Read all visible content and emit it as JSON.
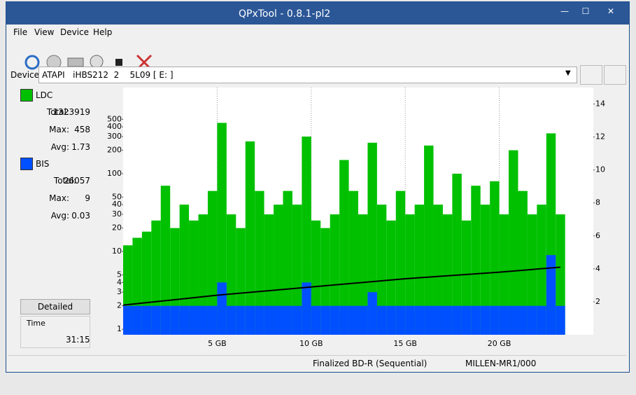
{
  "window": {
    "title": "QPxTool - 0.8.1-pl2"
  },
  "menu": [
    "File",
    "View",
    "Device",
    "Help"
  ],
  "device": {
    "label": "Device:",
    "value": "ATAPI   iHBS212  2    5L09 [ E: ]"
  },
  "panel": {
    "ldc_stats": [
      {
        "label": "Total:",
        "value": "1323919"
      },
      {
        "label": "Max:",
        "value": "458"
      },
      {
        "label": "Avg:",
        "value": "1.73"
      }
    ],
    "bis_stats": [
      {
        "label": "Total:",
        "value": "26057"
      },
      {
        "label": "Max:",
        "value": "9"
      },
      {
        "label": "Avg:",
        "value": "0.03"
      }
    ],
    "button": "Detailed",
    "time_label": "Time",
    "time": "31:15"
  },
  "status": [
    "Finalized BD-R (Sequential)",
    "MILLEN-MR1/000"
  ],
  "chart_data": {
    "type": "bar",
    "ylog": true,
    "grid": "x",
    "x": [
      0.25,
      0.75,
      1.25,
      1.75,
      2.25,
      2.75,
      3.25,
      3.75,
      4.25,
      4.75,
      5.25,
      5.75,
      6.25,
      6.75,
      7.25,
      7.75,
      8.25,
      8.75,
      9.25,
      9.75,
      10.25,
      10.75,
      11.25,
      11.75,
      12.25,
      12.75,
      13.25,
      13.75,
      14.25,
      14.75,
      15.25,
      15.75,
      16.25,
      16.75,
      17.25,
      17.75,
      18.25,
      18.75,
      19.25,
      19.75,
      20.25,
      20.75,
      21.25,
      21.75,
      22.25,
      22.75,
      23.25
    ],
    "series": [
      {
        "name": "LDC",
        "color": "#00c000",
        "values": [
          12,
          15,
          18,
          25,
          70,
          20,
          40,
          25,
          30,
          60,
          450,
          30,
          20,
          260,
          60,
          30,
          40,
          60,
          40,
          300,
          25,
          20,
          30,
          150,
          60,
          30,
          250,
          40,
          25,
          60,
          30,
          40,
          230,
          40,
          30,
          100,
          25,
          70,
          40,
          80,
          30,
          200,
          60,
          30,
          40,
          330,
          30
        ]
      },
      {
        "name": "BIS",
        "color": "#0050ff",
        "values": [
          2,
          2,
          2,
          2,
          2,
          2,
          2,
          2,
          2,
          2,
          4,
          2,
          2,
          2,
          2,
          2,
          2,
          2,
          2,
          4,
          2,
          2,
          2,
          2,
          2,
          2,
          3,
          2,
          2,
          2,
          2,
          2,
          2,
          2,
          2,
          2,
          2,
          2,
          2,
          2,
          2,
          2,
          2,
          2,
          2,
          9,
          2
        ]
      }
    ],
    "speed": {
      "color": "#000000",
      "axis": "y2",
      "x": [
        0,
        5,
        10,
        15,
        20,
        23.25
      ],
      "values": [
        1.8,
        2.4,
        2.9,
        3.4,
        3.8,
        4.1
      ]
    },
    "xlim": [
      0,
      25
    ],
    "xticks": [
      {
        "value": 5,
        "label": "5 GB"
      },
      {
        "value": 10,
        "label": "10 GB"
      },
      {
        "value": 15,
        "label": "15 GB"
      },
      {
        "value": 20,
        "label": "20 GB"
      }
    ],
    "ylim": [
      0.85,
      1280
    ],
    "yticks": [
      1,
      2,
      3,
      4,
      5,
      10,
      20,
      30,
      40,
      50,
      100,
      200,
      300,
      400,
      500
    ],
    "y2lim": [
      0,
      15
    ],
    "y2ticks": [
      2,
      4,
      6,
      8,
      10,
      12,
      14
    ]
  }
}
